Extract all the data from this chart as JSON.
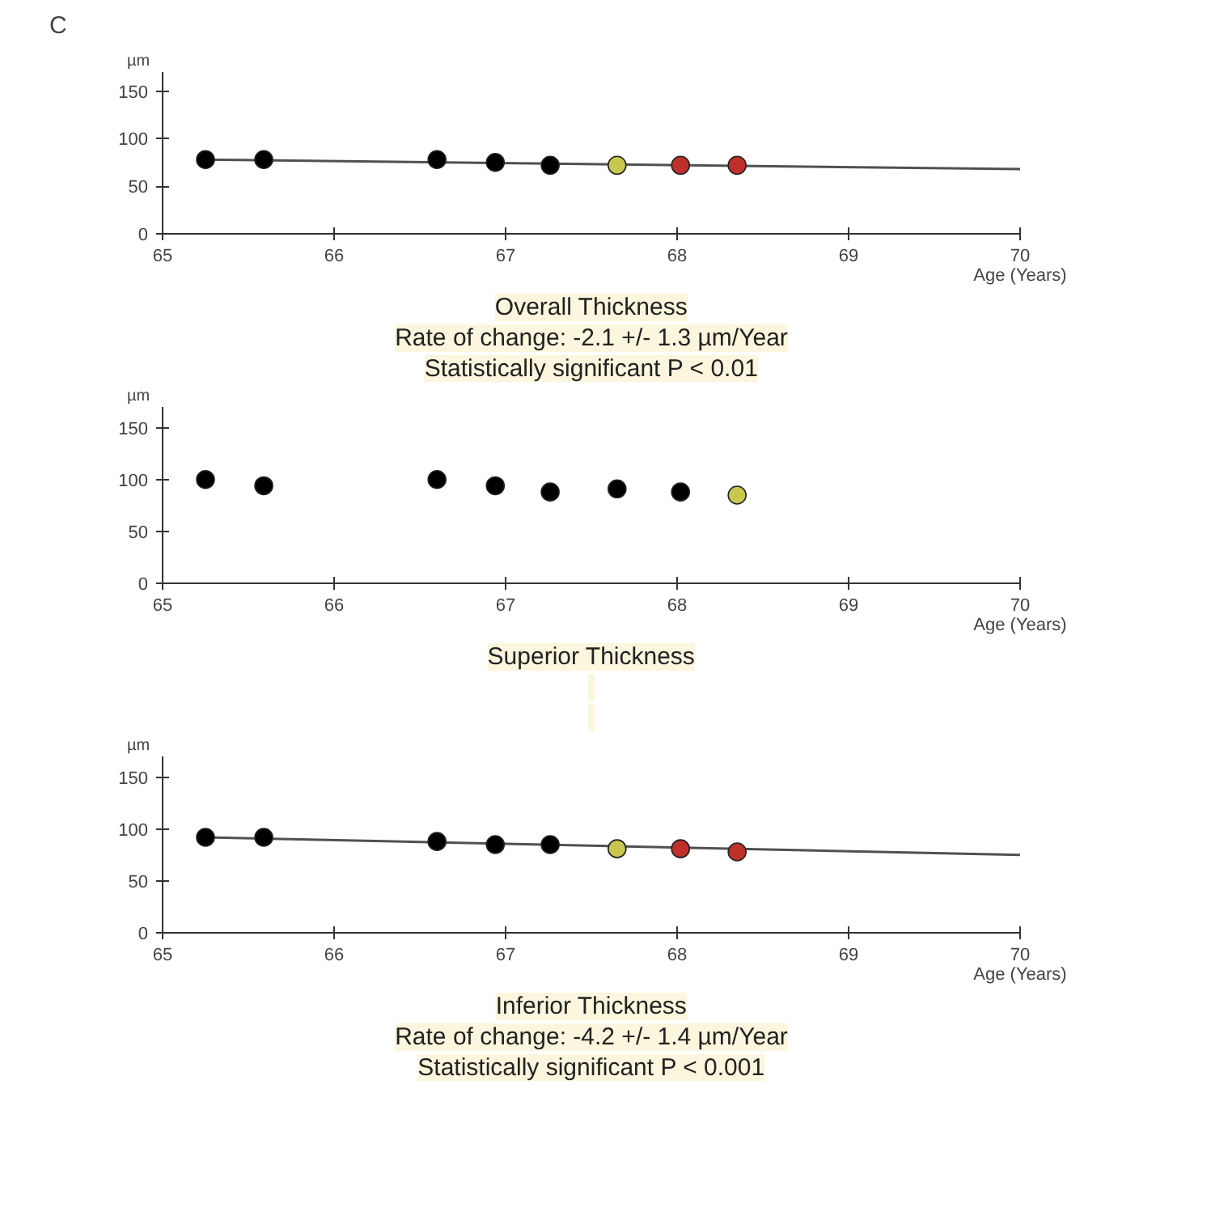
{
  "chart_data": [
    {
      "type": "scatter",
      "title": "C",
      "subtitle": "Overall Thickness",
      "annotations": [
        "Rate of change: -2.1 +/- 1.3 µm/Year",
        "Statistically significant P < 0.01"
      ],
      "xlabel": "Age (Years)",
      "ylabel": "µm",
      "xlim": [
        65,
        70
      ],
      "xticks": [
        65,
        66,
        67,
        68,
        69,
        70
      ],
      "ylim": [
        0,
        170
      ],
      "yticks": [
        0,
        50,
        100,
        150
      ],
      "grid": false,
      "series": [
        {
          "marker": "circle",
          "x": [
            65.25,
            65.59,
            66.6,
            66.94,
            67.26,
            67.65,
            68.02,
            68.35
          ],
          "values": [
            78,
            78,
            78,
            75,
            72,
            72,
            72,
            72
          ],
          "colors": [
            "#000000",
            "#000000",
            "#000000",
            "#000000",
            "#000000",
            "#c8c850",
            "#c0302a",
            "#c0302a"
          ]
        },
        {
          "type": "line",
          "color": "#505050",
          "x": [
            65.25,
            70
          ],
          "values": [
            78,
            68
          ]
        }
      ]
    },
    {
      "type": "scatter",
      "subtitle": "Superior Thickness",
      "xlabel": "Age (Years)",
      "ylabel": "µm",
      "xlim": [
        65,
        70
      ],
      "xticks": [
        65,
        66,
        67,
        68,
        69,
        70
      ],
      "ylim": [
        0,
        170
      ],
      "yticks": [
        0,
        50,
        100,
        150
      ],
      "grid": false,
      "series": [
        {
          "marker": "circle",
          "x": [
            65.25,
            65.59,
            66.6,
            66.94,
            67.26,
            67.65,
            68.02,
            68.35
          ],
          "values": [
            100,
            94,
            100,
            94,
            88,
            91,
            88,
            85
          ],
          "colors": [
            "#000000",
            "#000000",
            "#000000",
            "#000000",
            "#000000",
            "#000000",
            "#000000",
            "#c8c850"
          ]
        }
      ]
    },
    {
      "type": "scatter",
      "subtitle": "Inferior Thickness",
      "annotations": [
        "Rate of change: -4.2 +/- 1.4 µm/Year",
        "Statistically significant P < 0.001"
      ],
      "xlabel": "Age (Years)",
      "ylabel": "µm",
      "xlim": [
        65,
        70
      ],
      "xticks": [
        65,
        66,
        67,
        68,
        69,
        70
      ],
      "ylim": [
        0,
        170
      ],
      "yticks": [
        0,
        50,
        100,
        150
      ],
      "grid": false,
      "series": [
        {
          "marker": "circle",
          "x": [
            65.25,
            65.59,
            66.6,
            66.94,
            67.26,
            67.65,
            68.02,
            68.35
          ],
          "values": [
            92,
            92,
            88,
            85,
            85,
            81,
            81,
            78
          ],
          "colors": [
            "#000000",
            "#000000",
            "#000000",
            "#000000",
            "#000000",
            "#c8c850",
            "#c0302a",
            "#c0302a"
          ]
        },
        {
          "type": "line",
          "color": "#505050",
          "x": [
            65.25,
            70
          ],
          "values": [
            92,
            75
          ]
        }
      ]
    }
  ]
}
